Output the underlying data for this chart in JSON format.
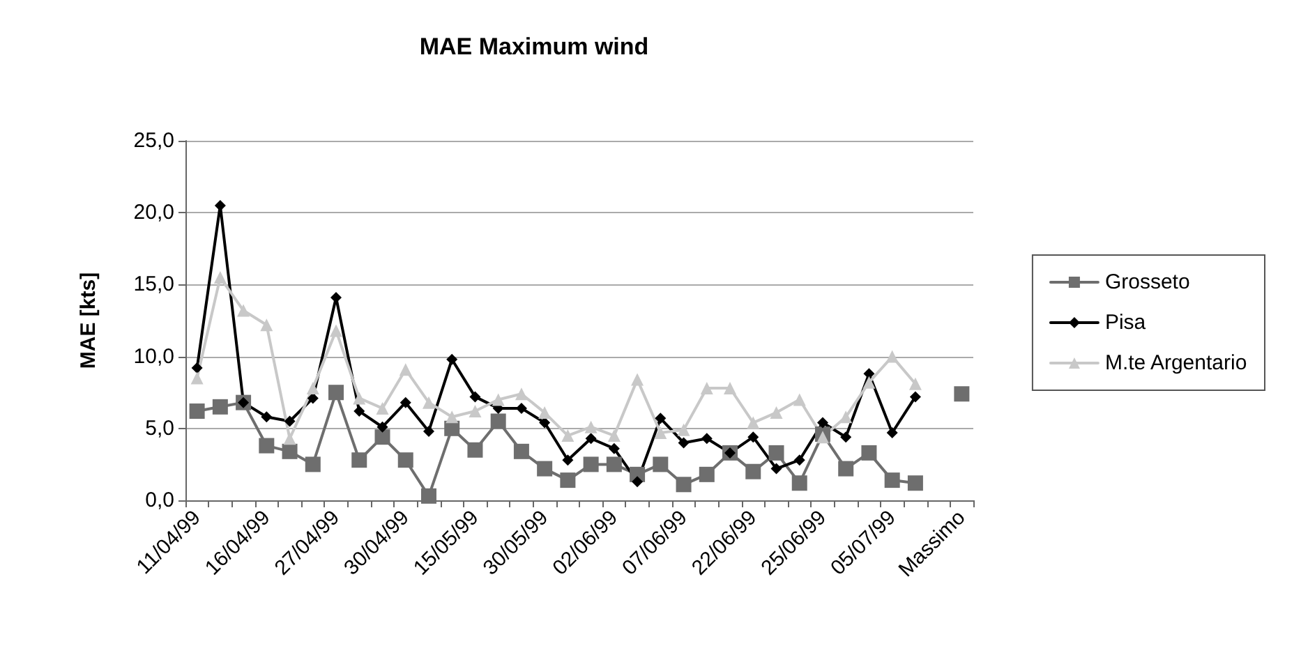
{
  "chart_data": {
    "type": "line",
    "title": "MAE Maximum wind",
    "ylabel": "MAE [kts]",
    "categories": [
      "11/04/99",
      null,
      null,
      "16/04/99",
      null,
      null,
      "27/04/99",
      null,
      null,
      "30/04/99",
      null,
      null,
      "15/05/99",
      null,
      null,
      "30/05/99",
      null,
      null,
      "02/06/99",
      null,
      null,
      "07/06/99",
      null,
      null,
      "22/06/99",
      null,
      null,
      "25/06/99",
      null,
      null,
      "05/07/99",
      null,
      null,
      "Massimo"
    ],
    "series": [
      {
        "name": "Grosseto",
        "color": "#6e6e6e",
        "marker": "square",
        "values": [
          6.2,
          6.5,
          6.8,
          3.8,
          3.4,
          2.5,
          7.5,
          2.8,
          4.4,
          2.8,
          0.3,
          5.0,
          3.5,
          5.5,
          3.4,
          2.2,
          1.4,
          2.5,
          2.5,
          1.8,
          2.5,
          1.1,
          1.8,
          3.3,
          2.0,
          3.3,
          1.2,
          4.6,
          2.2,
          3.3,
          1.4,
          1.2,
          null,
          7.4
        ]
      },
      {
        "name": "Pisa",
        "color": "#000000",
        "marker": "diamond",
        "values": [
          9.2,
          20.5,
          6.8,
          5.8,
          5.5,
          7.1,
          14.1,
          6.2,
          5.1,
          6.8,
          4.8,
          9.8,
          7.2,
          6.4,
          6.4,
          5.4,
          2.8,
          4.3,
          3.6,
          1.3,
          5.7,
          4.0,
          4.3,
          3.3,
          4.4,
          2.2,
          2.8,
          5.4,
          4.4,
          8.8,
          4.7,
          7.2,
          null,
          null
        ]
      },
      {
        "name": "M.te Argentario",
        "color": "#c8c8c8",
        "marker": "triangle",
        "values": [
          8.5,
          15.5,
          13.2,
          12.2,
          4.3,
          7.8,
          11.8,
          7.1,
          6.4,
          9.1,
          6.8,
          5.8,
          6.2,
          7.0,
          7.4,
          6.1,
          4.5,
          5.1,
          4.5,
          8.4,
          4.7,
          4.9,
          7.8,
          7.8,
          5.4,
          6.1,
          7.0,
          4.4,
          5.8,
          8.2,
          10.0,
          8.1,
          null,
          null
        ]
      }
    ],
    "ylim": [
      0,
      25
    ],
    "yticks": [
      {
        "value": 0,
        "label": "0,0"
      },
      {
        "value": 5,
        "label": "5,0"
      },
      {
        "value": 10,
        "label": "10,0"
      },
      {
        "value": 15,
        "label": "15,0"
      },
      {
        "value": 20,
        "label": "20,0"
      },
      {
        "value": 25,
        "label": "25,0"
      }
    ],
    "grid": "y",
    "legend": "right",
    "line_style": "solid"
  }
}
